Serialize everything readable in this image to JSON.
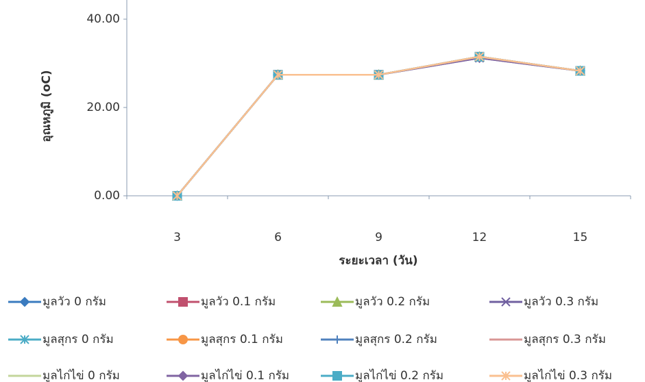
{
  "chart_data": {
    "type": "line",
    "y_label": "อุณหภูมิ (oC)",
    "x_label": "ระยะเวลา (วัน)",
    "categories": [
      "3",
      "6",
      "9",
      "12",
      "15"
    ],
    "ylim": [
      0,
      40
    ],
    "yticks": [
      {
        "value": 0,
        "label": "0.00"
      },
      {
        "value": 20,
        "label": "20.00"
      },
      {
        "value": 40,
        "label": "40.00"
      }
    ],
    "legend": "bottom",
    "series": [
      {
        "name": "มูลวัว 0 กรัม",
        "color": "#3a7bbf",
        "marker": "diamond",
        "values": [
          0,
          27.4,
          27.4,
          31.5,
          28.3
        ]
      },
      {
        "name": "มูลวัว 0.1 กรัม",
        "color": "#c0506e",
        "marker": "square",
        "values": [
          0,
          27.4,
          27.4,
          31.5,
          28.3
        ]
      },
      {
        "name": "มูลวัว 0.2 กรัม",
        "color": "#9bbb59",
        "marker": "triangle",
        "values": [
          0,
          27.4,
          27.4,
          31.5,
          28.3
        ]
      },
      {
        "name": "มูลวัว 0.3 กรัม",
        "color": "#7060a0",
        "marker": "x",
        "values": [
          0,
          27.4,
          27.4,
          31.2,
          28.3
        ]
      },
      {
        "name": "มูลสุกร 0 กรัม",
        "color": "#4bacc6",
        "marker": "star",
        "values": [
          0,
          27.4,
          27.4,
          31.5,
          28.3
        ]
      },
      {
        "name": "มูลสุกร 0.1 กรัม",
        "color": "#f79646",
        "marker": "circle",
        "values": [
          0,
          27.4,
          27.4,
          31.5,
          28.3
        ]
      },
      {
        "name": "มูลสุกร  0.2 กรัม",
        "color": "#4f81bd",
        "marker": "plus",
        "values": [
          0,
          27.4,
          27.4,
          31.5,
          28.3
        ]
      },
      {
        "name": "มูลสุกร 0.3 กรัม",
        "color": "#d99694",
        "marker": "none",
        "values": [
          0,
          27.4,
          27.4,
          31.5,
          28.3
        ]
      },
      {
        "name": "มูลไก่ไข่ 0 กรัม",
        "color": "#c3d69b",
        "marker": "none",
        "values": [
          0,
          27.4,
          27.4,
          31.5,
          28.3
        ]
      },
      {
        "name": "มูลไก่ไข่ 0.1 กรัม",
        "color": "#8064a2",
        "marker": "diamond",
        "values": [
          0,
          27.4,
          27.4,
          31.2,
          28.3
        ]
      },
      {
        "name": "มูลไก่ไข่  0.2 กรัม",
        "color": "#4bacc6",
        "marker": "square",
        "values": [
          0,
          27.4,
          27.4,
          31.5,
          28.3
        ]
      },
      {
        "name": "มูลไก่ไข่  0.3 กรัม",
        "color": "#fac090",
        "marker": "star",
        "values": [
          0,
          27.4,
          27.4,
          31.5,
          28.3
        ]
      }
    ]
  }
}
